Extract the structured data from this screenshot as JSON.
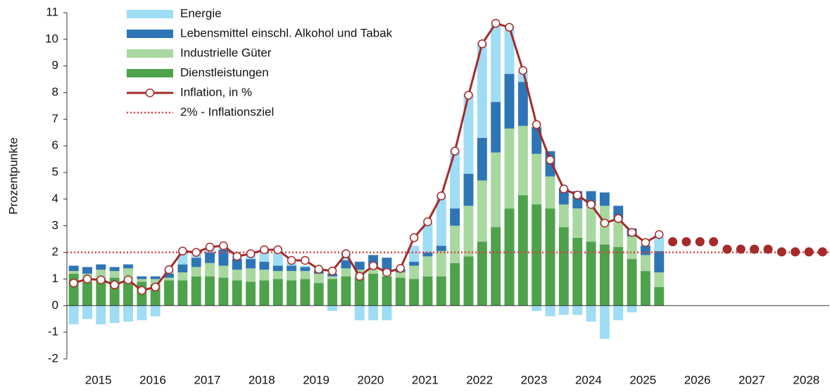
{
  "chart_data": {
    "type": "bar",
    "ylabel": "Prozentpunkte",
    "x_labels": [
      "2015",
      "2016",
      "2017",
      "2018",
      "2019",
      "2020",
      "2021",
      "2022",
      "2023",
      "2024",
      "2025",
      "2026",
      "2027",
      "2028"
    ],
    "ylim": [
      -2,
      11
    ],
    "yticks": [
      -2,
      -1,
      0,
      1,
      2,
      3,
      4,
      5,
      6,
      7,
      8,
      9,
      10,
      11
    ],
    "grid": false,
    "series": [
      {
        "name": "Energie",
        "color": "#9fdcf5",
        "values": [
          -0.7,
          -0.5,
          -0.7,
          -0.65,
          -0.6,
          -0.55,
          -0.4,
          0.15,
          0.5,
          0.2,
          0.2,
          0.15,
          0.1,
          0.2,
          0.45,
          0.5,
          0.1,
          0.05,
          0.05,
          -0.2,
          0.25,
          -0.55,
          -0.55,
          -0.55,
          0.05,
          0.6,
          1.1,
          1.9,
          2.2,
          3.0,
          3.6,
          2.9,
          1.8,
          0.4,
          -0.2,
          -0.4,
          -0.35,
          -0.35,
          -0.6,
          -1.25,
          -0.55,
          -0.25,
          0.05,
          0.55,
          null,
          null,
          null,
          null,
          null,
          null,
          null,
          null,
          null,
          null,
          null,
          null
        ]
      },
      {
        "name": "Lebensmittel einschl. Alkohol und Tabak",
        "color": "#2e75b6",
        "values": [
          0.2,
          0.25,
          0.2,
          0.15,
          0.15,
          0.1,
          0.1,
          0.15,
          0.3,
          0.35,
          0.4,
          0.6,
          0.4,
          0.35,
          0.3,
          0.2,
          0.2,
          0.15,
          0.1,
          0.1,
          0.3,
          0.3,
          0.45,
          0.5,
          0.1,
          0.15,
          0.15,
          0.2,
          0.65,
          1.2,
          1.6,
          1.9,
          2.05,
          1.65,
          1.0,
          0.95,
          0.6,
          0.65,
          0.55,
          0.5,
          0.5,
          0.3,
          0.35,
          0.8,
          null,
          null,
          null,
          null,
          null,
          null,
          null,
          null,
          null,
          null,
          null,
          null
        ]
      },
      {
        "name": "Industrielle Güter",
        "color": "#a8d8a0",
        "values": [
          0.1,
          0.3,
          0.35,
          0.25,
          0.5,
          0.1,
          0.2,
          0.1,
          0.3,
          0.35,
          0.5,
          0.45,
          0.4,
          0.5,
          0.4,
          0.3,
          0.35,
          0.3,
          0.35,
          0.1,
          0.3,
          0.3,
          0.25,
          0.2,
          0.2,
          0.5,
          0.75,
          0.95,
          1.4,
          1.9,
          2.3,
          2.8,
          3.0,
          2.6,
          1.9,
          1.2,
          0.85,
          1.1,
          1.35,
          1.45,
          1.05,
          0.85,
          0.6,
          0.55,
          null,
          null,
          null,
          null,
          null,
          null,
          null,
          null,
          null,
          null,
          null,
          null
        ]
      },
      {
        "name": "Dienstleistungen",
        "color": "#4ea24b",
        "values": [
          1.2,
          0.9,
          1.0,
          1.05,
          0.9,
          0.9,
          0.8,
          0.95,
          0.95,
          1.1,
          1.1,
          1.05,
          0.95,
          0.9,
          0.95,
          1.0,
          0.95,
          1.0,
          0.85,
          1.0,
          1.1,
          1.05,
          1.2,
          1.1,
          1.05,
          1.0,
          1.1,
          1.1,
          1.6,
          1.85,
          2.4,
          2.95,
          3.65,
          4.15,
          3.8,
          3.65,
          2.95,
          2.55,
          2.4,
          2.3,
          2.2,
          1.75,
          1.3,
          0.7,
          null,
          null,
          null,
          null,
          null,
          null,
          null,
          null,
          null,
          null,
          null,
          null
        ]
      },
      {
        "name": "Inflation, in %",
        "type": "line",
        "color": "#a52a2a",
        "values": [
          0.85,
          1.0,
          0.97,
          0.78,
          0.97,
          0.57,
          0.7,
          1.35,
          2.05,
          2.0,
          2.2,
          2.25,
          1.85,
          1.95,
          2.1,
          2.1,
          1.7,
          1.7,
          1.37,
          1.3,
          1.95,
          1.1,
          1.5,
          1.25,
          1.4,
          2.55,
          3.15,
          4.12,
          5.8,
          7.9,
          9.83,
          10.6,
          10.45,
          8.83,
          6.8,
          5.47,
          4.38,
          4.15,
          3.8,
          3.1,
          3.27,
          2.75,
          2.37,
          2.67,
          null,
          null,
          null,
          null,
          null,
          null,
          null,
          null,
          null,
          null,
          null,
          null
        ]
      }
    ],
    "forecast": {
      "color": "#a52a2a",
      "values": [
        null,
        null,
        null,
        null,
        null,
        null,
        null,
        null,
        null,
        null,
        null,
        null,
        null,
        null,
        null,
        null,
        null,
        null,
        null,
        null,
        null,
        null,
        null,
        null,
        null,
        null,
        null,
        null,
        null,
        null,
        null,
        null,
        null,
        null,
        null,
        null,
        null,
        null,
        null,
        null,
        null,
        null,
        null,
        null,
        2.4,
        2.4,
        2.4,
        2.4,
        2.12,
        2.12,
        2.12,
        2.12,
        2.02,
        2.02,
        2.02,
        2.02
      ]
    },
    "target": {
      "name": "2% - Inflationsziel",
      "value": 2,
      "color": "#d9403a"
    },
    "legend": "upper left"
  }
}
